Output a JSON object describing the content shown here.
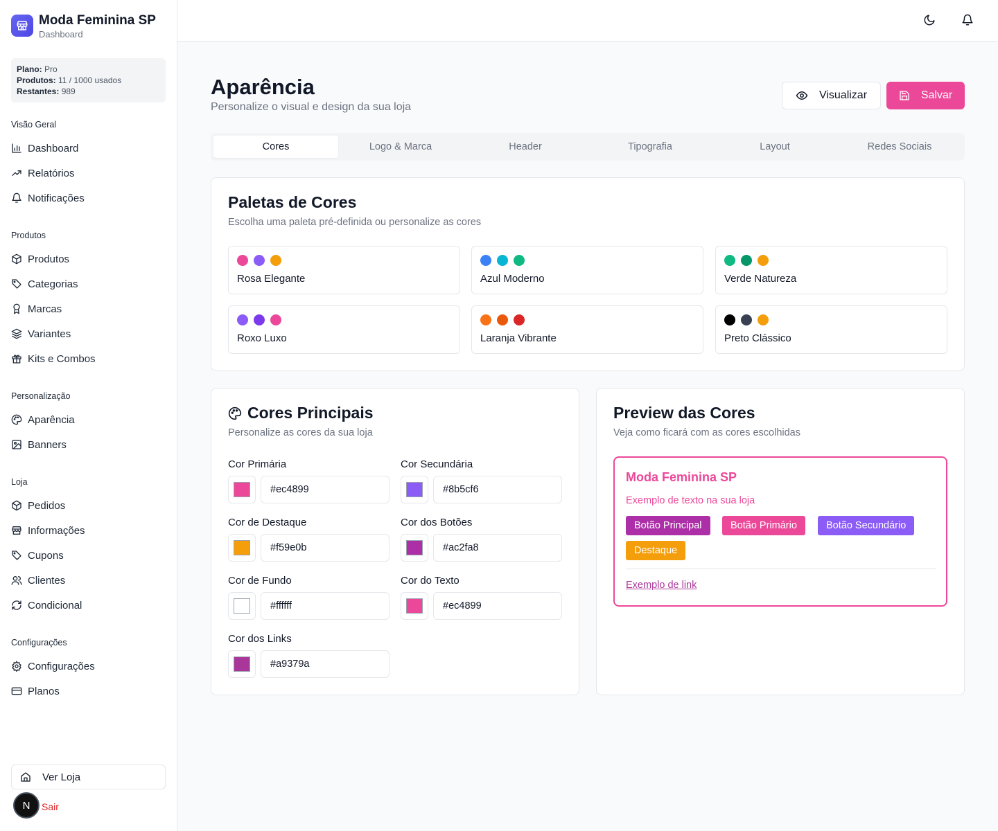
{
  "brand": {
    "name": "Moda Feminina SP",
    "subtitle": "Dashboard"
  },
  "plan": {
    "plan_label": "Plano:",
    "plan_value": "Pro",
    "products_label": "Produtos:",
    "products_value": "11 / 1000 usados",
    "remaining_label": "Restantes:",
    "remaining_value": "989"
  },
  "sidebar": {
    "groups": [
      {
        "title": "Visão Geral",
        "items": [
          "Dashboard",
          "Relatórios",
          "Notificações"
        ]
      },
      {
        "title": "Produtos",
        "items": [
          "Produtos",
          "Categorias",
          "Marcas",
          "Variantes",
          "Kits e Combos"
        ]
      },
      {
        "title": "Personalização",
        "items": [
          "Aparência",
          "Banners"
        ]
      },
      {
        "title": "Loja",
        "items": [
          "Pedidos",
          "Informações",
          "Cupons",
          "Clientes",
          "Condicional"
        ]
      },
      {
        "title": "Configurações",
        "items": [
          "Configurações",
          "Planos"
        ]
      }
    ],
    "ver_loja": "Ver Loja",
    "sair": "Sair",
    "avatar_letter": "N"
  },
  "header": {
    "title": "Aparência",
    "subtitle": "Personalize o visual e design da sua loja",
    "preview_button": "Visualizar",
    "save_button": "Salvar"
  },
  "tabs": [
    "Cores",
    "Logo & Marca",
    "Header",
    "Tipografia",
    "Layout",
    "Redes Sociais"
  ],
  "palettes": {
    "title": "Paletas de Cores",
    "subtitle": "Escolha uma paleta pré-definida ou personalize as cores",
    "items": [
      {
        "name": "Rosa Elegante",
        "colors": [
          "#ec4899",
          "#8b5cf6",
          "#f59e0b"
        ]
      },
      {
        "name": "Azul Moderno",
        "colors": [
          "#3b82f6",
          "#06b6d4",
          "#10b981"
        ]
      },
      {
        "name": "Verde Natureza",
        "colors": [
          "#10b981",
          "#059669",
          "#f59e0b"
        ]
      },
      {
        "name": "Roxo Luxo",
        "colors": [
          "#8b5cf6",
          "#7c3aed",
          "#ec4899"
        ]
      },
      {
        "name": "Laranja Vibrante",
        "colors": [
          "#f97316",
          "#ea580c",
          "#dc2626"
        ]
      },
      {
        "name": "Preto Clássico",
        "colors": [
          "#000000",
          "#374151",
          "#f59e0b"
        ]
      }
    ]
  },
  "main_colors": {
    "title": "Cores Principais",
    "subtitle": "Personalize as cores da sua loja",
    "fields": [
      {
        "label": "Cor Primária",
        "value": "#ec4899"
      },
      {
        "label": "Cor Secundária",
        "value": "#8b5cf6"
      },
      {
        "label": "Cor de Destaque",
        "value": "#f59e0b"
      },
      {
        "label": "Cor dos Botões",
        "value": "#ac2fa8"
      },
      {
        "label": "Cor de Fundo",
        "value": "#ffffff"
      },
      {
        "label": "Cor do Texto",
        "value": "#ec4899"
      },
      {
        "label": "Cor dos Links",
        "value": "#a9379a"
      }
    ]
  },
  "preview": {
    "title": "Preview das Cores",
    "subtitle": "Veja como ficará com as cores escolhidas",
    "store_name": "Moda Feminina SP",
    "sample_text": "Exemplo de texto na sua loja",
    "buttons": {
      "principal": "Botão Principal",
      "primario": "Botão Primário",
      "secundario": "Botão Secundário",
      "destaque": "Destaque"
    },
    "link": "Exemplo de link"
  }
}
